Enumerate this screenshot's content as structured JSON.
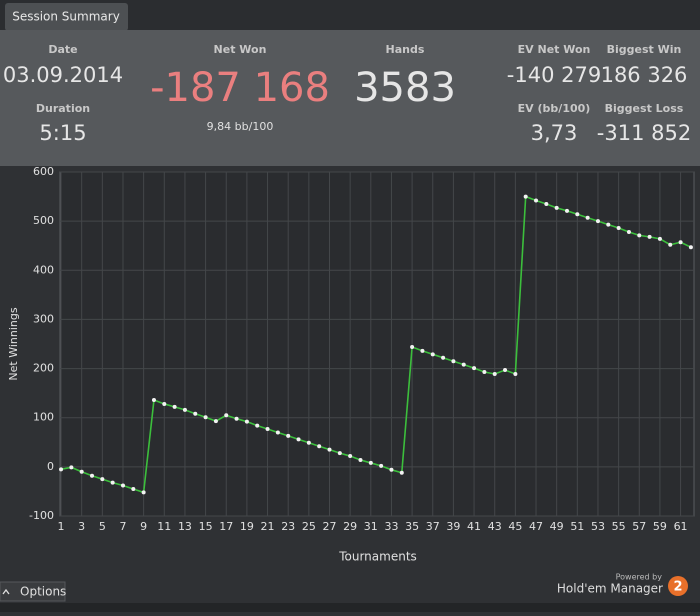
{
  "header": {
    "tab": "Session Summary"
  },
  "stats": {
    "date_label": "Date",
    "date": "03.09.2014",
    "duration_label": "Duration",
    "duration": "5:15",
    "net_won_label": "Net Won",
    "net_won": "-187 168",
    "bb_per_100": "9,84 bb/100",
    "hands_label": "Hands",
    "hands": "3583",
    "ev_net_won_label": "EV Net Won",
    "ev_net_won": "-140 279",
    "biggest_win_label": "Biggest Win",
    "biggest_win": "186 326",
    "ev_bb_label": "EV (bb/100)",
    "ev_bb": "3,73",
    "biggest_loss_label": "Biggest Loss",
    "biggest_loss": "-311 852"
  },
  "chart_data": {
    "type": "line",
    "x_label": "Tournaments",
    "y_label": "Net Winnings",
    "x": [
      1,
      2,
      3,
      4,
      5,
      6,
      7,
      8,
      9,
      10,
      11,
      12,
      13,
      14,
      15,
      16,
      17,
      18,
      19,
      20,
      21,
      22,
      23,
      24,
      25,
      26,
      27,
      28,
      29,
      30,
      31,
      32,
      33,
      34,
      35,
      36,
      37,
      38,
      39,
      40,
      41,
      42,
      43,
      44,
      45,
      46,
      47,
      48,
      49,
      50,
      51,
      52,
      53,
      54,
      55,
      56,
      57,
      58,
      59,
      60,
      61,
      62
    ],
    "series": [
      {
        "color": "#3cbf3c",
        "values": [
          -5,
          -1,
          -10,
          -18,
          -25,
          -32,
          -38,
          -45,
          -52,
          136,
          128,
          122,
          116,
          108,
          101,
          93,
          105,
          98,
          92,
          84,
          77,
          70,
          63,
          56,
          49,
          42,
          35,
          28,
          22,
          14,
          8,
          2,
          -6,
          -12,
          244,
          236,
          229,
          222,
          215,
          208,
          201,
          193,
          189,
          197,
          189,
          550,
          542,
          535,
          527,
          521,
          514,
          507,
          500,
          493,
          486,
          478,
          471,
          468,
          464,
          452,
          457,
          447
        ]
      }
    ],
    "xlim": [
      0.9,
      62.3
    ],
    "ylim": [
      -100,
      600
    ],
    "xticks": [
      1,
      3,
      5,
      7,
      9,
      11,
      13,
      15,
      17,
      19,
      21,
      23,
      25,
      27,
      29,
      31,
      33,
      35,
      37,
      39,
      41,
      43,
      45,
      47,
      49,
      51,
      53,
      55,
      57,
      59,
      61
    ],
    "yticks": [
      -100,
      0,
      100,
      200,
      300,
      400,
      500,
      600
    ],
    "grid": true
  },
  "footer": {
    "options": "Options",
    "powered_by": "Powered by",
    "brand": "Hold'em Manager",
    "version": "2"
  }
}
